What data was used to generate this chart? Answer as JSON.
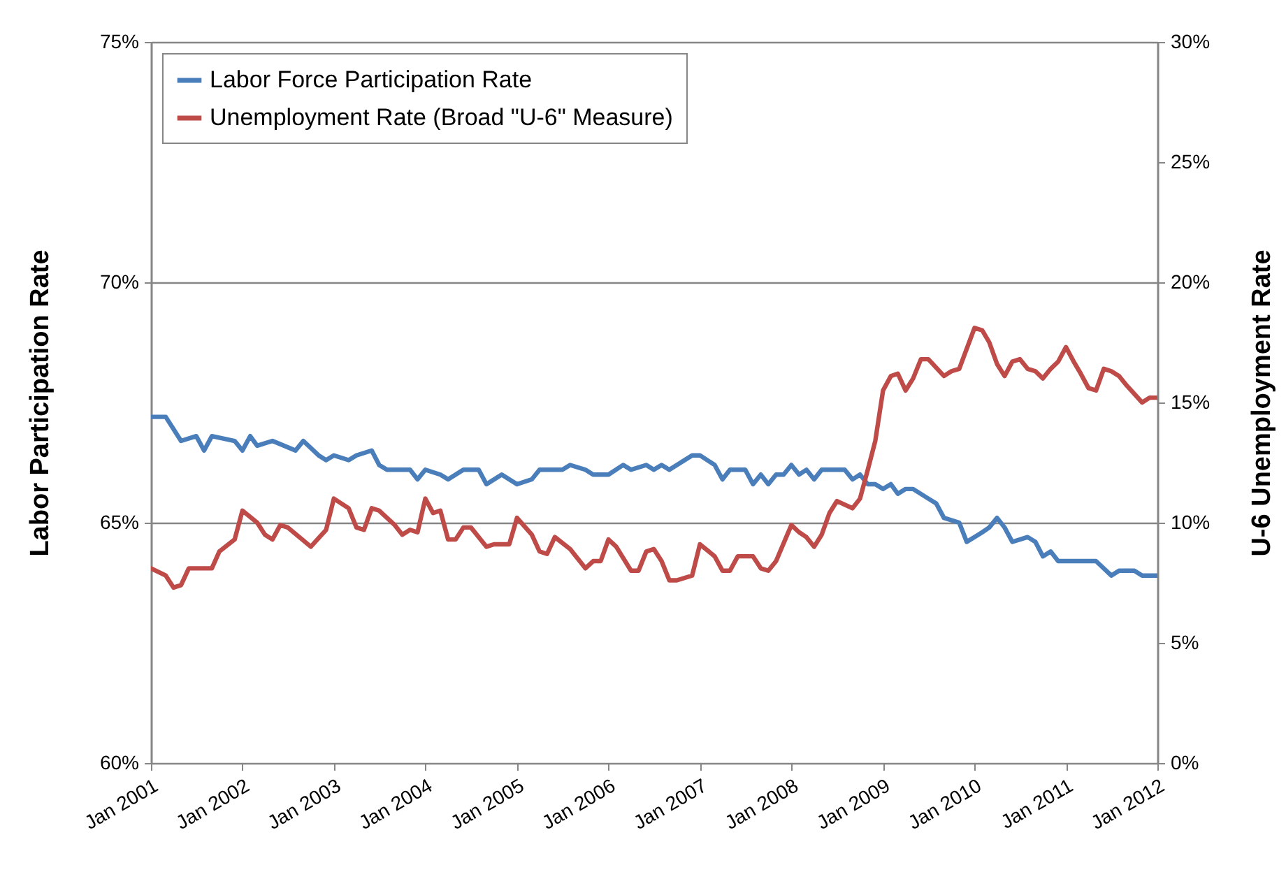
{
  "chart_data": {
    "type": "line",
    "ylabel": "Labor Participation Rate",
    "y2label": "U-6 Unemployment Rate",
    "legend": "top left",
    "grid": "y",
    "xlim": [
      "2001-01",
      "2012-01"
    ],
    "xticks": [
      {
        "value": "2001-01",
        "label": "Jan 2001"
      },
      {
        "value": "2002-01",
        "label": "Jan 2002"
      },
      {
        "value": "2003-01",
        "label": "Jan 2003"
      },
      {
        "value": "2004-01",
        "label": "Jan 2004"
      },
      {
        "value": "2005-01",
        "label": "Jan 2005"
      },
      {
        "value": "2006-01",
        "label": "Jan 2006"
      },
      {
        "value": "2007-01",
        "label": "Jan 2007"
      },
      {
        "value": "2008-01",
        "label": "Jan 2008"
      },
      {
        "value": "2009-01",
        "label": "Jan 2009"
      },
      {
        "value": "2010-01",
        "label": "Jan 2010"
      },
      {
        "value": "2011-01",
        "label": "Jan 2011"
      },
      {
        "value": "2012-01",
        "label": "Jan 2012"
      }
    ],
    "ylim": [
      60,
      75
    ],
    "yticks": [
      {
        "value": 60,
        "label": "60%"
      },
      {
        "value": 65,
        "label": "65%"
      },
      {
        "value": 70,
        "label": "70%"
      },
      {
        "value": 75,
        "label": "75%"
      }
    ],
    "y2lim": [
      0,
      30
    ],
    "y2ticks": [
      {
        "value": 0,
        "label": "0%"
      },
      {
        "value": 5,
        "label": "5%"
      },
      {
        "value": 10,
        "label": "10%"
      },
      {
        "value": 15,
        "label": "15%"
      },
      {
        "value": 20,
        "label": "20%"
      },
      {
        "value": 25,
        "label": "25%"
      },
      {
        "value": 30,
        "label": "30%"
      }
    ],
    "series": [
      {
        "name": "Labor Force Participation Rate",
        "color": "#4a7ebb",
        "x": [
          "2001-01",
          "2001-03",
          "2001-05",
          "2001-07",
          "2001-08",
          "2001-09",
          "2001-12",
          "2002-01",
          "2002-02",
          "2002-03",
          "2002-05",
          "2002-08",
          "2002-09",
          "2002-11",
          "2002-12",
          "2003-01",
          "2003-03",
          "2003-04",
          "2003-06",
          "2003-07",
          "2003-08",
          "2003-11",
          "2003-12",
          "2004-01",
          "2004-03",
          "2004-04",
          "2004-06",
          "2004-08",
          "2004-09",
          "2004-11",
          "2005-01",
          "2005-03",
          "2005-04",
          "2005-07",
          "2005-08",
          "2005-10",
          "2005-11",
          "2006-01",
          "2006-03",
          "2006-04",
          "2006-06",
          "2006-07",
          "2006-08",
          "2006-09",
          "2006-12",
          "2007-01",
          "2007-03",
          "2007-04",
          "2007-05",
          "2007-07",
          "2007-08",
          "2007-09",
          "2007-10",
          "2007-11",
          "2007-12",
          "2008-01",
          "2008-02",
          "2008-03",
          "2008-04",
          "2008-05",
          "2008-08",
          "2008-09",
          "2008-10",
          "2008-11",
          "2008-12",
          "2009-01",
          "2009-02",
          "2009-03",
          "2009-04",
          "2009-05",
          "2009-07",
          "2009-08",
          "2009-09",
          "2009-11",
          "2009-12",
          "2010-02",
          "2010-03",
          "2010-04",
          "2010-05",
          "2010-06",
          "2010-08",
          "2010-09",
          "2010-10",
          "2010-11",
          "2010-12",
          "2011-02",
          "2011-05",
          "2011-07",
          "2011-08",
          "2011-10",
          "2011-11",
          "2012-01"
        ],
        "values": [
          67.2,
          67.2,
          66.7,
          66.8,
          66.5,
          66.8,
          66.7,
          66.5,
          66.8,
          66.6,
          66.7,
          66.5,
          66.7,
          66.4,
          66.3,
          66.4,
          66.3,
          66.4,
          66.5,
          66.2,
          66.1,
          66.1,
          65.9,
          66.1,
          66.0,
          65.9,
          66.1,
          66.1,
          65.8,
          66.0,
          65.8,
          65.9,
          66.1,
          66.1,
          66.2,
          66.1,
          66.0,
          66.0,
          66.2,
          66.1,
          66.2,
          66.1,
          66.2,
          66.1,
          66.4,
          66.4,
          66.2,
          65.9,
          66.1,
          66.1,
          65.8,
          66.0,
          65.8,
          66.0,
          66.0,
          66.2,
          66.0,
          66.1,
          65.9,
          66.1,
          66.1,
          65.9,
          66.0,
          65.8,
          65.8,
          65.7,
          65.8,
          65.6,
          65.7,
          65.7,
          65.5,
          65.4,
          65.1,
          65.0,
          64.6,
          64.8,
          64.9,
          65.1,
          64.9,
          64.6,
          64.7,
          64.6,
          64.3,
          64.4,
          64.2,
          64.2,
          64.2,
          63.9,
          64.0,
          64.0,
          63.9,
          63.9
        ]
      },
      {
        "name": "Unemployment Rate (Broad \"U-6\" Measure)",
        "color": "#be4b48",
        "axis": "y2",
        "x": [
          "2001-01",
          "2001-03",
          "2001-04",
          "2001-05",
          "2001-06",
          "2001-09",
          "2001-10",
          "2001-12",
          "2002-01",
          "2002-03",
          "2002-04",
          "2002-05",
          "2002-06",
          "2002-07",
          "2002-10",
          "2002-12",
          "2003-01",
          "2003-03",
          "2003-04",
          "2003-05",
          "2003-06",
          "2003-07",
          "2003-09",
          "2003-10",
          "2003-11",
          "2003-12",
          "2004-01",
          "2004-02",
          "2004-03",
          "2004-04",
          "2004-05",
          "2004-06",
          "2004-07",
          "2004-09",
          "2004-10",
          "2004-12",
          "2005-01",
          "2005-03",
          "2005-04",
          "2005-05",
          "2005-06",
          "2005-08",
          "2005-10",
          "2005-11",
          "2005-12",
          "2006-01",
          "2006-02",
          "2006-04",
          "2006-05",
          "2006-06",
          "2006-07",
          "2006-08",
          "2006-09",
          "2006-10",
          "2006-12",
          "2007-01",
          "2007-03",
          "2007-04",
          "2007-05",
          "2007-06",
          "2007-08",
          "2007-09",
          "2007-10",
          "2007-11",
          "2008-01",
          "2008-02",
          "2008-03",
          "2008-04",
          "2008-05",
          "2008-06",
          "2008-07",
          "2008-09",
          "2008-10",
          "2008-11",
          "2008-12",
          "2009-01",
          "2009-02",
          "2009-03",
          "2009-04",
          "2009-05",
          "2009-06",
          "2009-07",
          "2009-09",
          "2009-10",
          "2009-11",
          "2010-01",
          "2010-02",
          "2010-03",
          "2010-04",
          "2010-05",
          "2010-06",
          "2010-07",
          "2010-08",
          "2010-09",
          "2010-10",
          "2010-11",
          "2010-12",
          "2011-01",
          "2011-02",
          "2011-03",
          "2011-04",
          "2011-05",
          "2011-06",
          "2011-07",
          "2011-08",
          "2011-09",
          "2011-11",
          "2011-12",
          "2012-01"
        ],
        "values": [
          8.1,
          7.8,
          7.3,
          7.4,
          8.1,
          8.1,
          8.8,
          9.3,
          10.5,
          10.0,
          9.5,
          9.3,
          9.9,
          9.8,
          9.0,
          9.7,
          11.0,
          10.6,
          9.8,
          9.7,
          10.6,
          10.5,
          9.9,
          9.5,
          9.7,
          9.6,
          11.0,
          10.4,
          10.5,
          9.3,
          9.3,
          9.8,
          9.8,
          9.0,
          9.1,
          9.1,
          10.2,
          9.5,
          8.8,
          8.7,
          9.4,
          8.9,
          8.1,
          8.4,
          8.4,
          9.3,
          9.0,
          8.0,
          8.0,
          8.8,
          8.9,
          8.4,
          7.6,
          7.6,
          7.8,
          9.1,
          8.6,
          8.0,
          8.0,
          8.6,
          8.6,
          8.1,
          8.0,
          8.4,
          9.9,
          9.6,
          9.4,
          9.0,
          9.5,
          10.4,
          10.9,
          10.6,
          11.0,
          12.2,
          13.4,
          15.5,
          16.1,
          16.2,
          15.5,
          16.0,
          16.8,
          16.8,
          16.1,
          16.3,
          16.4,
          18.1,
          18.0,
          17.5,
          16.6,
          16.1,
          16.7,
          16.8,
          16.4,
          16.3,
          16.0,
          16.4,
          16.7,
          17.3,
          16.7,
          16.2,
          15.6,
          15.5,
          16.4,
          16.3,
          16.1,
          15.7,
          15.0,
          15.2,
          15.2
        ]
      }
    ]
  }
}
